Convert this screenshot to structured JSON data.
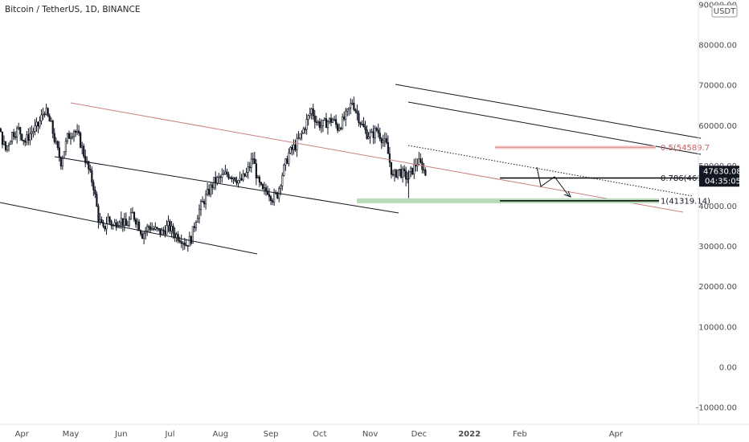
{
  "chart_data": {
    "type": "candlestick",
    "title": "Bitcoin / TetherUS, 1D, BINANCE",
    "currency": "USDT",
    "ylim": [
      -13000,
      90000
    ],
    "y_ticks": [
      "90000.00",
      "80000.00",
      "70000.00",
      "60000.00",
      "50000.00",
      "40000.00",
      "30000.00",
      "20000.00",
      "10000.00",
      "0.00",
      "-10000.00"
    ],
    "y_tick_values": [
      90000,
      80000,
      70000,
      60000,
      50000,
      40000,
      30000,
      20000,
      10000,
      0,
      -10000
    ],
    "x_ticks": [
      "Apr",
      "May",
      "Jun",
      "Jul",
      "Aug",
      "Sep",
      "Oct",
      "Nov",
      "Dec",
      "2022",
      "Feb",
      "Apr"
    ],
    "x_tick_days": [
      90,
      120,
      151,
      181,
      212,
      243,
      273,
      304,
      334,
      365,
      396,
      455
    ],
    "xlim_days": [
      40,
      460
    ],
    "price_path": [
      [
        40,
        45000
      ],
      [
        45,
        51000
      ],
      [
        50,
        57000
      ],
      [
        52,
        60000
      ],
      [
        55,
        50000
      ],
      [
        58,
        47000
      ],
      [
        62,
        57000
      ],
      [
        65,
        58000
      ],
      [
        70,
        55000
      ],
      [
        75,
        60000
      ],
      [
        80,
        54000
      ],
      [
        84,
        58000
      ],
      [
        88,
        59000
      ],
      [
        92,
        56000
      ],
      [
        95,
        58000
      ],
      [
        100,
        60000
      ],
      [
        104,
        64000
      ],
      [
        108,
        60000
      ],
      [
        111,
        55000
      ],
      [
        114,
        51000
      ],
      [
        118,
        57000
      ],
      [
        122,
        59000
      ],
      [
        125,
        57000
      ],
      [
        128,
        53000
      ],
      [
        131,
        49000
      ],
      [
        134,
        45000
      ],
      [
        137,
        37000
      ],
      [
        140,
        34000
      ],
      [
        143,
        37000
      ],
      [
        146,
        35000
      ],
      [
        150,
        37000
      ],
      [
        154,
        35000
      ],
      [
        158,
        38000
      ],
      [
        161,
        36000
      ],
      [
        164,
        33000
      ],
      [
        168,
        35000
      ],
      [
        172,
        34000
      ],
      [
        176,
        33500
      ],
      [
        180,
        35000
      ],
      [
        184,
        33000
      ],
      [
        188,
        32000
      ],
      [
        191,
        30500
      ],
      [
        194,
        32000
      ],
      [
        197,
        37000
      ],
      [
        200,
        40000
      ],
      [
        204,
        43000
      ],
      [
        208,
        46000
      ],
      [
        212,
        47000
      ],
      [
        216,
        48000
      ],
      [
        220,
        47500
      ],
      [
        224,
        46000
      ],
      [
        228,
        48000
      ],
      [
        232,
        52000
      ],
      [
        235,
        46000
      ],
      [
        238,
        43500
      ],
      [
        241,
        44000
      ],
      [
        244,
        42000
      ],
      [
        247,
        43000
      ],
      [
        250,
        48000
      ],
      [
        254,
        53000
      ],
      [
        258,
        55000
      ],
      [
        262,
        58000
      ],
      [
        265,
        61000
      ],
      [
        268,
        64000
      ],
      [
        271,
        61000
      ],
      [
        274,
        60000
      ],
      [
        278,
        61000
      ],
      [
        281,
        61500
      ],
      [
        284,
        59500
      ],
      [
        287,
        61000
      ],
      [
        290,
        63000
      ],
      [
        293,
        66000
      ],
      [
        296,
        63000
      ],
      [
        299,
        60000
      ],
      [
        302,
        58000
      ],
      [
        305,
        57500
      ],
      [
        308,
        59000
      ],
      [
        311,
        57000
      ],
      [
        314,
        55000
      ],
      [
        316,
        51000
      ],
      [
        318,
        47000
      ],
      [
        321,
        49000
      ],
      [
        324,
        48000
      ],
      [
        327,
        47000
      ],
      [
        330,
        49000
      ],
      [
        333,
        51000
      ],
      [
        336,
        50000
      ],
      [
        338,
        47630
      ]
    ],
    "fib_levels": [
      {
        "label": "0.5(54589.7",
        "value": 54589.7,
        "color": "#e08e8e"
      },
      {
        "label": "0.786(46998",
        "value": 46998,
        "color": "#000000"
      },
      {
        "label": "1(41319.14)",
        "value": 41319.14,
        "color": "#000000"
      }
    ],
    "current_price": {
      "value": 47630.08,
      "label": "47630.08",
      "countdown": "04:35:05"
    }
  }
}
